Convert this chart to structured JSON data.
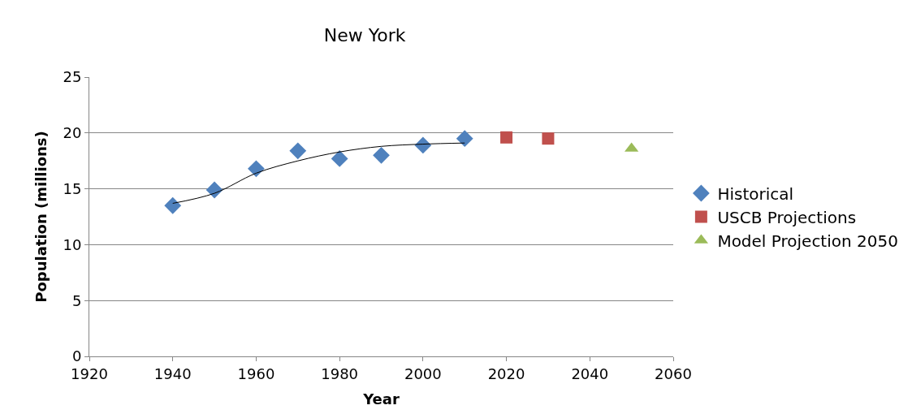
{
  "chart_data": {
    "type": "scatter",
    "title": "New York",
    "xlabel": "Year",
    "ylabel": "Population (millions)",
    "xlim": [
      1920,
      2060
    ],
    "xticks": [
      1920,
      1940,
      1960,
      1980,
      2000,
      2020,
      2040,
      2060
    ],
    "ylim": [
      0,
      25
    ],
    "yticks": [
      0,
      5,
      10,
      15,
      20,
      25
    ],
    "grid": "y",
    "legend": "right",
    "series": [
      {
        "name": "Historical",
        "color": "#4f81bd",
        "marker": "diamond",
        "x": [
          1940,
          1950,
          1960,
          1970,
          1980,
          1990,
          2000,
          2010
        ],
        "values": [
          13.5,
          14.9,
          16.8,
          18.4,
          17.7,
          18.0,
          18.9,
          19.5
        ]
      },
      {
        "name": "USCB Projections",
        "color": "#c0504d",
        "marker": "square",
        "x": [
          2020,
          2030
        ],
        "values": [
          19.6,
          19.5
        ]
      },
      {
        "name": "Model Projection 2050",
        "color": "#9bbb59",
        "marker": "triangle",
        "x": [
          2050
        ],
        "values": [
          18.6
        ]
      },
      {
        "type": "line",
        "color": "#000000",
        "marker": "none",
        "line_style": "solid",
        "x": [
          1940,
          1950,
          1960,
          1970,
          1980,
          1990,
          2000,
          2010
        ],
        "values": [
          13.7,
          14.6,
          16.4,
          17.5,
          18.3,
          18.8,
          19.0,
          19.1
        ]
      }
    ]
  }
}
